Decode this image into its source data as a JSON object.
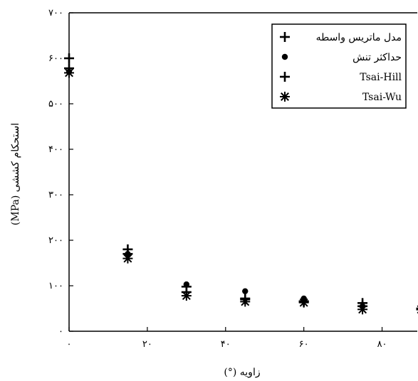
{
  "chart_data": {
    "type": "scatter",
    "xlabel": "زاویه (°)",
    "ylabel": "استحکام کششی (MPa)",
    "xlim": [
      0,
      90
    ],
    "ylim": [
      0,
      700
    ],
    "x_ticks": [
      0,
      20,
      40,
      60,
      80
    ],
    "x_tick_labels": [
      "۰",
      "۲۰",
      "۴۰",
      "۶۰",
      "۸۰"
    ],
    "y_ticks": [
      0,
      100,
      200,
      300,
      400,
      500,
      600,
      700
    ],
    "y_tick_labels": [
      "۰",
      "۱۰۰",
      "۲۰۰",
      "۳۰۰",
      "۴۰۰",
      "۵۰۰",
      "۶۰۰",
      "۷۰۰"
    ],
    "grid": false,
    "legend_position": "top-right",
    "series": [
      {
        "name": "مدل ماتریس واسطه",
        "marker": "plus",
        "x": [
          0,
          15,
          30,
          45,
          60,
          75,
          90
        ],
        "y": [
          600,
          180,
          98,
          72,
          65,
          62,
          50
        ]
      },
      {
        "name": "حداکثر تنش",
        "marker": "circle",
        "x": [
          0,
          15,
          30,
          45,
          60,
          75,
          90
        ],
        "y": [
          570,
          170,
          103,
          88,
          72,
          55,
          50
        ]
      },
      {
        "name": "Tsai-Hill",
        "marker": "plus",
        "x": [
          0,
          15,
          30,
          45,
          60,
          75,
          90
        ],
        "y": [
          578,
          170,
          86,
          70,
          66,
          55,
          48
        ]
      },
      {
        "name": "Tsai-Wu",
        "marker": "asterisk",
        "x": [
          0,
          15,
          30,
          45,
          60,
          75,
          90
        ],
        "y": [
          568,
          160,
          78,
          65,
          63,
          48,
          48
        ]
      }
    ]
  }
}
